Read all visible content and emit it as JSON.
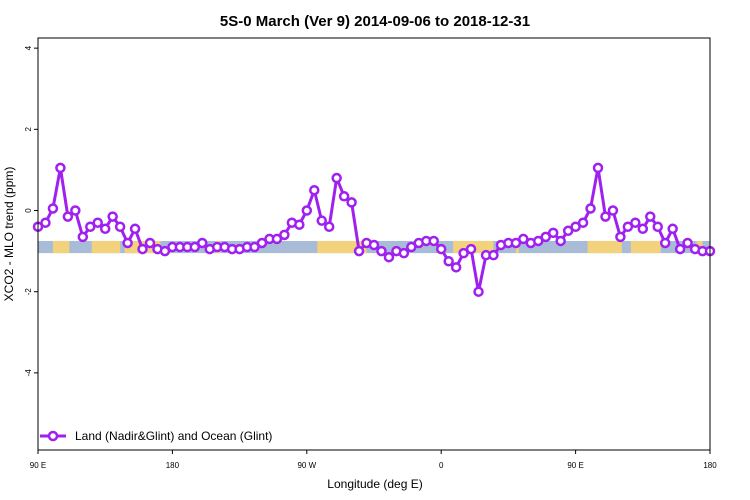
{
  "chart_data": {
    "type": "line",
    "title": "5S-0 March (Ver 9)   2014-09-06 to 2018-12-31",
    "xlabel": "Longitude (deg E)",
    "ylabel": "XCO2 - MLO trend (ppm)",
    "xlim": [
      90,
      540
    ],
    "ylim": [
      -5.9,
      4.25
    ],
    "x_ticks": [
      {
        "value": 90,
        "label": "90 E"
      },
      {
        "value": 180,
        "label": "180"
      },
      {
        "value": 270,
        "label": "90 W"
      },
      {
        "value": 360,
        "label": "0"
      },
      {
        "value": 450,
        "label": "90 E"
      },
      {
        "value": 540,
        "label": "180"
      }
    ],
    "y_ticks": [
      {
        "value": 4,
        "label": "4"
      },
      {
        "value": 2,
        "label": "2"
      },
      {
        "value": 0,
        "label": "0"
      },
      {
        "value": -2,
        "label": "-2"
      },
      {
        "value": -4,
        "label": "-4"
      }
    ],
    "grid": false,
    "legend": {
      "position": "bottom-left",
      "entries": [
        "Land (Nadir&Glint) and Ocean (Glint)"
      ]
    },
    "colors": {
      "series": "#a020f0",
      "ocean": "#a8bcd8",
      "land": "#f2d27c"
    },
    "band": {
      "y_top": -0.75,
      "y_bottom": -1.05,
      "land_segments": [
        [
          100,
          111
        ],
        [
          126,
          145
        ],
        [
          148,
          172
        ],
        [
          209,
          212
        ],
        [
          277,
          310
        ],
        [
          368,
          395
        ],
        [
          410,
          412
        ],
        [
          458,
          481
        ],
        [
          487,
          507
        ],
        [
          531,
          535
        ]
      ]
    },
    "series": [
      {
        "name": "Land (Nadir&Glint) and Ocean (Glint)",
        "x": [
          90,
          95,
          100,
          105,
          110,
          115,
          120,
          125,
          130,
          135,
          140,
          145,
          150,
          155,
          160,
          165,
          170,
          175,
          180,
          185,
          190,
          195,
          200,
          205,
          210,
          215,
          220,
          225,
          230,
          235,
          240,
          245,
          250,
          255,
          260,
          265,
          270,
          275,
          280,
          285,
          290,
          295,
          300,
          305,
          310,
          315,
          320,
          325,
          330,
          335,
          340,
          345,
          350,
          355,
          360,
          365,
          370,
          375,
          380,
          385,
          390,
          395,
          400,
          405,
          410,
          415,
          420,
          425,
          430,
          435,
          440,
          445,
          450,
          455,
          460,
          465,
          470,
          475,
          480,
          485,
          490,
          495,
          500,
          505,
          510,
          515,
          520,
          525,
          530,
          535,
          540
        ],
        "y": [
          -0.4,
          -0.3,
          0.05,
          1.05,
          -0.15,
          0.0,
          -0.65,
          -0.4,
          -0.3,
          -0.45,
          -0.15,
          -0.4,
          -0.8,
          -0.45,
          -0.95,
          -0.8,
          -0.95,
          -1.0,
          -0.9,
          -0.9,
          -0.9,
          -0.9,
          -0.8,
          -0.95,
          -0.9,
          -0.9,
          -0.95,
          -0.95,
          -0.9,
          -0.9,
          -0.8,
          -0.7,
          -0.7,
          -0.6,
          -0.3,
          -0.35,
          0.0,
          0.5,
          -0.25,
          -0.4,
          0.8,
          0.35,
          0.2,
          -1.0,
          -0.8,
          -0.85,
          -1.0,
          -1.15,
          -1.0,
          -1.05,
          -0.9,
          -0.8,
          -0.75,
          -0.75,
          -0.95,
          -1.25,
          -1.4,
          -1.05,
          -0.95,
          -2.0,
          -1.1,
          -1.1,
          -0.85,
          -0.8,
          -0.8,
          -0.7,
          -0.8,
          -0.75,
          -0.65,
          -0.55,
          -0.75,
          -0.5,
          -0.4,
          -0.3,
          0.05,
          1.05,
          -0.15,
          0.0,
          -0.65,
          -0.4,
          -0.3,
          -0.45,
          -0.15,
          -0.4,
          -0.8,
          -0.45,
          -0.95,
          -0.8,
          -0.95,
          -1.0,
          -1.0
        ]
      }
    ]
  }
}
